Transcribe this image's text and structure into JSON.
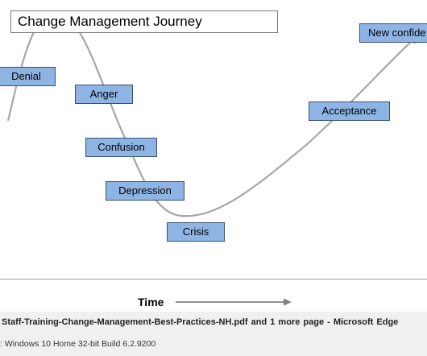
{
  "slide": {
    "title": "Change Management Journey",
    "stages": {
      "denial": "Denial",
      "anger": "Anger",
      "confusion": "Confusion",
      "depression": "Depression",
      "crisis": "Crisis",
      "acceptance": "Acceptance",
      "new_confidence": "New confide"
    },
    "curve_color": "#a6a6a6",
    "box_fill": "#8eb4e3"
  },
  "axis": {
    "label": "Time"
  },
  "infobar": {
    "window_title": "Staff-Training-Change-Management-Best-Practices-NH.pdf and 1 more page - Microsoft Edge",
    "os_info": ": Windows 10 Home 32-bit Build 6.2.9200"
  }
}
